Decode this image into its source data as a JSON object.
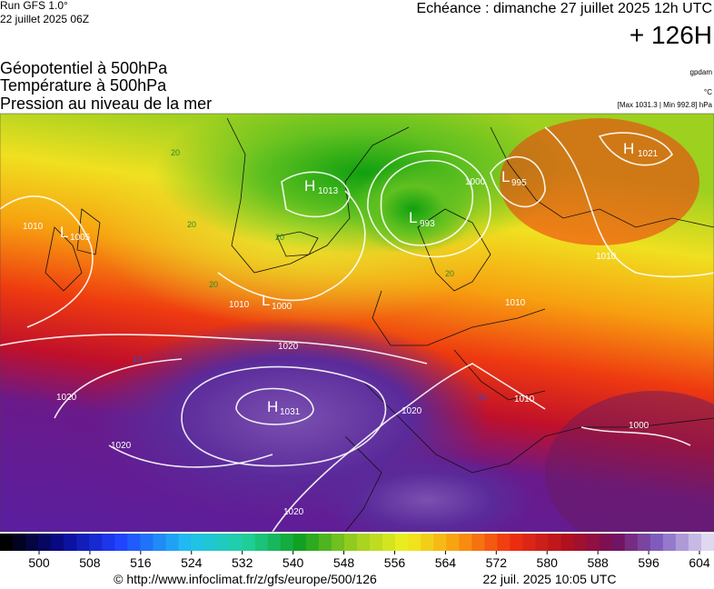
{
  "header": {
    "run": "Run GFS 1.0°",
    "run_date": "22 juillet 2025 06Z",
    "echeance": "Echéance : dimanche 27 juillet 2025 12h UTC",
    "lead": "+ 126H"
  },
  "legend": {
    "lines": [
      "Géopotentiel à 500hPa",
      "Température à 500hPa",
      "Pression au niveau de la mer"
    ],
    "units": [
      "gpdam",
      "°C"
    ],
    "range": "[Max 1031.3 | Min 992.8] hPa"
  },
  "pressure_centers": [
    {
      "type": "H",
      "value": 1013
    },
    {
      "type": "L",
      "value": 993
    },
    {
      "type": "L",
      "value": 995
    },
    {
      "type": "H",
      "value": 1021
    },
    {
      "type": "L",
      "value": 1005
    },
    {
      "type": "L",
      "value": 1000
    },
    {
      "type": "H",
      "value": 1031
    }
  ],
  "isobar_labels": [
    1010,
    1010,
    1010,
    1010,
    1010,
    1020,
    1020,
    1020,
    1020,
    1020,
    1000,
    1000
  ],
  "temperature_labels": [
    20,
    20,
    20,
    20,
    20,
    10,
    10
  ],
  "colorbar": {
    "ticks": [
      500,
      508,
      516,
      524,
      532,
      540,
      548,
      556,
      564,
      572,
      580,
      588,
      596,
      604
    ]
  },
  "footer": {
    "source": "© http://www.infoclimat.fr/z/gfs/europe/500/126",
    "date": "22 juil. 2025 10:05 UTC"
  }
}
